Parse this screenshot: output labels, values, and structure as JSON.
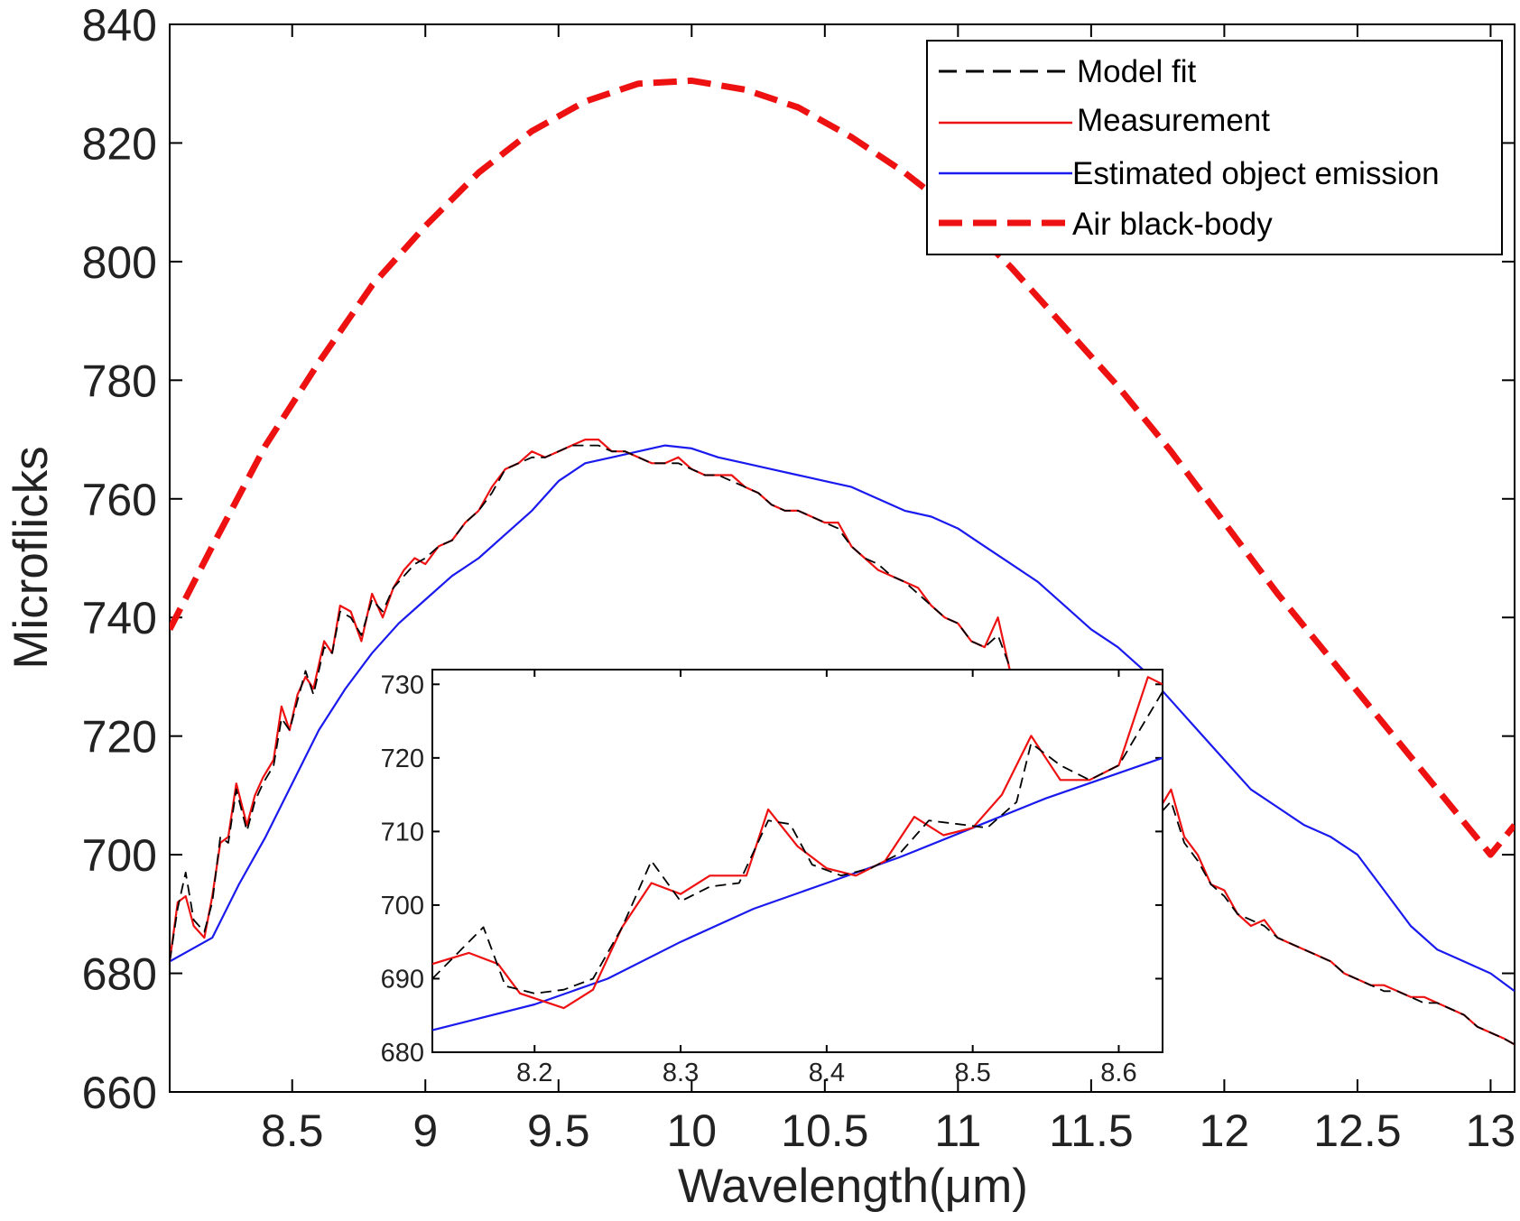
{
  "chart_data": [
    {
      "type": "line",
      "xlabel": "Wavelength(μm)",
      "ylabel": "Microflicks",
      "xlim": [
        8.04,
        13.09
      ],
      "ylim": [
        660,
        840
      ],
      "xticks": [
        "8.5",
        "9",
        "9.5",
        "10",
        "10.5",
        "11",
        "11.5",
        "12",
        "12.5",
        "13"
      ],
      "yticks": [
        "660",
        "680",
        "700",
        "720",
        "740",
        "760",
        "780",
        "800",
        "820",
        "840"
      ],
      "legend_position": "top-right",
      "legend": [
        "Model fit",
        "Measurement",
        "Estimated object emission",
        "Air black-body"
      ],
      "series": [
        {
          "name": "Air black-body",
          "color": "#ee1111",
          "style": "dashed-thick",
          "x": [
            8.04,
            8.2,
            8.4,
            8.6,
            8.8,
            9.0,
            9.2,
            9.4,
            9.6,
            9.8,
            10.0,
            10.2,
            10.4,
            10.6,
            10.8,
            11.0,
            11.2,
            11.4,
            11.6,
            11.8,
            12.0,
            12.2,
            12.4,
            12.6,
            12.8,
            13.0,
            13.09
          ],
          "y": [
            738,
            752,
            769,
            783,
            796,
            806,
            815,
            822,
            827,
            830,
            830.5,
            829,
            826,
            821,
            815,
            808,
            799,
            789,
            779,
            768,
            756,
            744,
            733,
            722,
            711,
            700,
            705
          ]
        },
        {
          "name": "Estimated object emission",
          "color": "#1a1aee",
          "style": "solid",
          "x": [
            8.04,
            8.2,
            8.3,
            8.4,
            8.5,
            8.6,
            8.7,
            8.8,
            8.9,
            9.0,
            9.1,
            9.2,
            9.3,
            9.4,
            9.5,
            9.6,
            9.7,
            9.8,
            9.9,
            10.0,
            10.1,
            10.2,
            10.3,
            10.4,
            10.5,
            10.6,
            10.7,
            10.8,
            10.9,
            11.0,
            11.1,
            11.2,
            11.3,
            11.4,
            11.5,
            11.6,
            11.7,
            11.8,
            11.9,
            12.0,
            12.1,
            12.2,
            12.3,
            12.4,
            12.5,
            12.6,
            12.7,
            12.8,
            12.9,
            13.0,
            13.09
          ],
          "y": [
            682,
            686,
            695,
            703,
            712,
            721,
            728,
            734,
            739,
            743,
            747,
            750,
            754,
            758,
            763,
            766,
            767,
            768,
            769,
            768.5,
            767,
            766,
            765,
            764,
            763,
            762,
            760,
            758,
            757,
            755,
            752,
            749,
            746,
            742,
            738,
            735,
            731,
            726,
            721,
            716,
            711,
            708,
            705,
            703,
            700,
            694,
            688,
            684,
            682,
            680,
            677
          ]
        },
        {
          "name": "Measurement",
          "color": "#ee1111",
          "style": "solid",
          "x": [
            8.04,
            8.07,
            8.1,
            8.13,
            8.17,
            8.2,
            8.23,
            8.26,
            8.29,
            8.33,
            8.36,
            8.39,
            8.43,
            8.46,
            8.49,
            8.52,
            8.55,
            8.58,
            8.62,
            8.65,
            8.68,
            8.72,
            8.76,
            8.8,
            8.84,
            8.88,
            8.92,
            8.96,
            9.0,
            9.05,
            9.1,
            9.15,
            9.2,
            9.25,
            9.3,
            9.35,
            9.4,
            9.45,
            9.5,
            9.55,
            9.6,
            9.65,
            9.7,
            9.75,
            9.8,
            9.85,
            9.9,
            9.95,
            10.0,
            10.05,
            10.1,
            10.15,
            10.2,
            10.25,
            10.3,
            10.35,
            10.4,
            10.45,
            10.5,
            10.55,
            10.6,
            10.65,
            10.7,
            10.75,
            10.8,
            10.85,
            10.9,
            10.95,
            11.0,
            11.05,
            11.1,
            11.15,
            11.2,
            11.25,
            11.3,
            11.35,
            11.4,
            11.45,
            11.5,
            11.55,
            11.6,
            11.65,
            11.7,
            11.73,
            11.76,
            11.8,
            11.85,
            11.9,
            11.95,
            12.0,
            12.05,
            12.1,
            12.15,
            12.2,
            12.25,
            12.3,
            12.35,
            12.4,
            12.45,
            12.5,
            12.55,
            12.6,
            12.65,
            12.7,
            12.75,
            12.8,
            12.85,
            12.9,
            12.95,
            13.0,
            13.05,
            13.09
          ],
          "y": [
            682,
            692,
            693,
            688,
            686,
            693,
            702,
            703,
            712,
            705,
            710,
            713,
            716,
            725,
            721,
            727,
            730,
            728,
            736,
            734,
            742,
            741,
            736,
            744,
            740,
            745,
            748,
            750,
            749,
            752,
            753,
            756,
            758,
            762,
            765,
            766,
            768,
            767,
            768,
            769,
            770,
            770,
            768,
            768,
            767,
            766,
            766,
            767,
            765,
            764,
            764,
            764,
            762,
            761,
            759,
            758,
            758,
            757,
            756,
            756,
            752,
            750,
            748,
            747,
            746,
            745,
            742,
            740,
            739,
            736,
            735,
            740,
            730,
            726,
            723,
            718,
            716,
            712,
            710,
            708,
            706,
            711,
            710,
            712,
            708,
            711,
            703,
            700,
            695,
            694,
            690,
            688,
            689,
            686,
            685,
            684,
            683,
            682,
            680,
            679,
            678,
            678,
            677,
            676,
            676,
            675,
            674,
            673,
            671,
            670,
            669,
            668
          ]
        },
        {
          "name": "Model fit",
          "color": "#000000",
          "style": "dashed-thin",
          "x": [
            8.04,
            8.07,
            8.1,
            8.13,
            8.17,
            8.2,
            8.23,
            8.26,
            8.29,
            8.33,
            8.36,
            8.39,
            8.43,
            8.46,
            8.49,
            8.52,
            8.55,
            8.58,
            8.62,
            8.65,
            8.68,
            8.72,
            8.76,
            8.8,
            8.84,
            8.88,
            8.92,
            8.96,
            9.0,
            9.05,
            9.1,
            9.15,
            9.2,
            9.25,
            9.3,
            9.35,
            9.4,
            9.45,
            9.5,
            9.55,
            9.6,
            9.65,
            9.7,
            9.75,
            9.8,
            9.85,
            9.9,
            9.95,
            10.0,
            10.05,
            10.1,
            10.15,
            10.2,
            10.25,
            10.3,
            10.35,
            10.4,
            10.45,
            10.5,
            10.55,
            10.6,
            10.65,
            10.7,
            10.75,
            10.8,
            10.85,
            10.9,
            10.95,
            11.0,
            11.05,
            11.1,
            11.15,
            11.2,
            11.25,
            11.3,
            11.35,
            11.4,
            11.45,
            11.5,
            11.55,
            11.6,
            11.65,
            11.7,
            11.73,
            11.76,
            11.8,
            11.85,
            11.9,
            11.95,
            12.0,
            12.05,
            12.1,
            12.15,
            12.2,
            12.25,
            12.3,
            12.35,
            12.4,
            12.45,
            12.5,
            12.55,
            12.6,
            12.65,
            12.7,
            12.75,
            12.8,
            12.85,
            12.9,
            12.95,
            13.0,
            13.05,
            13.09
          ],
          "y": [
            682,
            691,
            697,
            689,
            687,
            692,
            703,
            702,
            711,
            704,
            709,
            712,
            715,
            723,
            721,
            726,
            731,
            727,
            735,
            734,
            741,
            740,
            737,
            743,
            741,
            745,
            747,
            749,
            750,
            752,
            753,
            756,
            758,
            761,
            765,
            766,
            767,
            767,
            768,
            769,
            769,
            769,
            768,
            768,
            767,
            766,
            766,
            766,
            765,
            764,
            764,
            763,
            762,
            761,
            759,
            758,
            758,
            757,
            756,
            755,
            752,
            750,
            749,
            747,
            746,
            744,
            742,
            740,
            739,
            736,
            735,
            737,
            731,
            726,
            723,
            718,
            716,
            712,
            710,
            709,
            707,
            709,
            709,
            711,
            707,
            709,
            702,
            699,
            695,
            693,
            690,
            689,
            688,
            686,
            685,
            684,
            683,
            682,
            680,
            679,
            678,
            677,
            677,
            676,
            675,
            675,
            674,
            673,
            671,
            670,
            669,
            668
          ]
        }
      ]
    },
    {
      "type": "line",
      "xlabel": "",
      "ylabel": "",
      "xlim": [
        8.13,
        8.63
      ],
      "ylim": [
        680,
        732
      ],
      "xticks": [
        "8.2",
        "8.3",
        "8.4",
        "8.5",
        "8.6"
      ],
      "yticks": [
        "680",
        "690",
        "700",
        "710",
        "720",
        "730"
      ],
      "series": [
        {
          "name": "Estimated object emission",
          "color": "#1a1aee",
          "style": "solid",
          "x": [
            8.13,
            8.2,
            8.25,
            8.3,
            8.35,
            8.4,
            8.45,
            8.5,
            8.55,
            8.63
          ],
          "y": [
            683,
            686.5,
            690,
            695,
            699.5,
            703,
            706.5,
            710.5,
            714.5,
            720
          ]
        },
        {
          "name": "Measurement",
          "color": "#ee1111",
          "style": "solid",
          "x": [
            8.13,
            8.155,
            8.175,
            8.19,
            8.22,
            8.24,
            8.26,
            8.28,
            8.3,
            8.32,
            8.345,
            8.36,
            8.38,
            8.4,
            8.42,
            8.44,
            8.46,
            8.48,
            8.5,
            8.52,
            8.54,
            8.56,
            8.58,
            8.6,
            8.62,
            8.63
          ],
          "y": [
            692,
            693.5,
            692,
            688,
            686,
            688.5,
            697,
            703,
            701.5,
            704,
            704,
            713,
            708,
            705,
            704,
            706,
            712,
            709.5,
            710.5,
            715,
            723,
            717,
            717,
            719,
            731,
            730
          ]
        },
        {
          "name": "Model fit",
          "color": "#000000",
          "style": "dashed-thin",
          "x": [
            8.13,
            8.15,
            8.165,
            8.18,
            8.2,
            8.22,
            8.24,
            8.26,
            8.28,
            8.3,
            8.32,
            8.34,
            8.36,
            8.375,
            8.39,
            8.41,
            8.43,
            8.45,
            8.47,
            8.49,
            8.51,
            8.53,
            8.54,
            8.56,
            8.58,
            8.6,
            8.615,
            8.63
          ],
          "y": [
            690,
            694,
            697,
            689,
            688,
            688.5,
            690,
            697,
            706,
            700.5,
            702.5,
            703,
            711.5,
            711,
            705.5,
            704,
            705,
            707,
            711.5,
            711,
            710.5,
            714,
            722,
            719,
            717,
            719,
            724,
            729
          ]
        }
      ]
    }
  ]
}
